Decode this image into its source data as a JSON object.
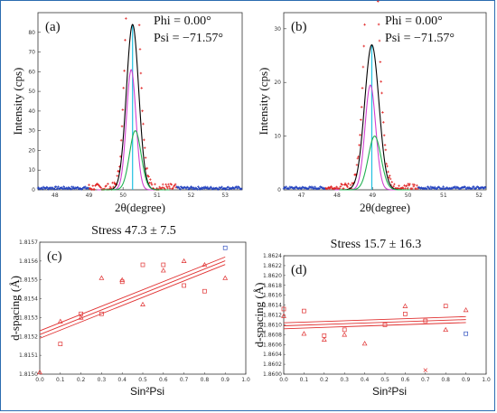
{
  "chart_data": [
    {
      "id": "a",
      "type": "line",
      "panel_label": "(a)",
      "xlabel": "2θ(degree)",
      "ylabel": "Intensity (cps)",
      "annotation_lines": [
        "Phi = 0.00°",
        "Psi = −71.57°"
      ],
      "xlim": [
        47.5,
        53.5
      ],
      "ylim": [
        0,
        90
      ],
      "xticks": [
        48,
        49,
        50,
        51,
        52,
        53
      ],
      "yticks": [
        0,
        10,
        20,
        30,
        40,
        50,
        60,
        70,
        80
      ],
      "peak_center": 50.28,
      "series": [
        {
          "type": "peak",
          "center": 50.28,
          "amplitude": 84,
          "width": 0.18,
          "color": "#000000"
        },
        {
          "type": "peak",
          "center": 50.24,
          "amplitude": 61,
          "width": 0.14,
          "color": "#d040d0"
        },
        {
          "type": "peak",
          "center": 50.36,
          "amplitude": 30,
          "width": 0.17,
          "color": "#20b050"
        }
      ],
      "colors": {
        "background": "#1f3fbf",
        "measured": "#e02020",
        "center_line": "#20c0e0"
      }
    },
    {
      "id": "b",
      "type": "line",
      "panel_label": "(b)",
      "xlabel": "2θ(degree)",
      "ylabel": "Intensity (cps)",
      "annotation_lines": [
        "Phi = 0.00°",
        "Psi = −71.57°"
      ],
      "xlim": [
        46.5,
        52.2
      ],
      "ylim": [
        0,
        33
      ],
      "xticks": [
        47,
        48,
        49,
        50,
        51,
        52
      ],
      "yticks": [
        0,
        10,
        20,
        30
      ],
      "peak_center": 48.98,
      "series": [
        {
          "type": "peak",
          "center": 48.98,
          "amplitude": 27,
          "width": 0.2,
          "color": "#000000"
        },
        {
          "type": "peak",
          "center": 48.94,
          "amplitude": 19.5,
          "width": 0.15,
          "color": "#d040d0"
        },
        {
          "type": "peak",
          "center": 49.06,
          "amplitude": 10,
          "width": 0.18,
          "color": "#20b050"
        }
      ],
      "colors": {
        "background": "#1f3fbf",
        "measured": "#e02020",
        "center_line": "#20c0e0"
      }
    },
    {
      "id": "c",
      "type": "scatter",
      "panel_label": "(c)",
      "stress_text": "Stress 47.3 ± 7.5",
      "xlabel": "Sin²Psi",
      "ylabel": "d-spacing (Å)",
      "xlim": [
        0,
        1
      ],
      "ylim": [
        1.815,
        1.8157
      ],
      "xticks": [
        "0.0",
        "0.1",
        "0.2",
        "0.3",
        "0.4",
        "0.5",
        "0.6",
        "0.7",
        "0.8",
        "0.9",
        "1.0"
      ],
      "yticks": [
        "1.8150",
        "1.8151",
        "1.8152",
        "1.8153",
        "1.8154",
        "1.8155",
        "1.8156",
        "1.8157"
      ],
      "fit": {
        "intercept": 1.81521,
        "slope": 0.000435,
        "band": 2e-05
      },
      "points": [
        {
          "x": 0.1,
          "y": 1.81528,
          "m": "tri"
        },
        {
          "x": 0.1,
          "y": 1.81516,
          "m": "sq"
        },
        {
          "x": 0.2,
          "y": 1.8153,
          "m": "tri"
        },
        {
          "x": 0.2,
          "y": 1.81532,
          "m": "sq"
        },
        {
          "x": 0.3,
          "y": 1.81551,
          "m": "tri"
        },
        {
          "x": 0.3,
          "y": 1.81532,
          "m": "sq"
        },
        {
          "x": 0.4,
          "y": 1.8155,
          "m": "tri"
        },
        {
          "x": 0.4,
          "y": 1.81549,
          "m": "sq"
        },
        {
          "x": 0.5,
          "y": 1.81537,
          "m": "tri"
        },
        {
          "x": 0.5,
          "y": 1.81558,
          "m": "sq"
        },
        {
          "x": 0.6,
          "y": 1.81555,
          "m": "tri"
        },
        {
          "x": 0.6,
          "y": 1.81558,
          "m": "sq"
        },
        {
          "x": 0.7,
          "y": 1.8156,
          "m": "tri"
        },
        {
          "x": 0.7,
          "y": 1.81547,
          "m": "sq"
        },
        {
          "x": 0.8,
          "y": 1.81558,
          "m": "tri"
        },
        {
          "x": 0.8,
          "y": 1.81544,
          "m": "sq"
        },
        {
          "x": 0.9,
          "y": 1.81551,
          "m": "tri"
        },
        {
          "x": 0.9,
          "y": 1.81567,
          "m": "sq-blue"
        },
        {
          "x": 0.0,
          "y": 1.81501,
          "m": "tri"
        }
      ],
      "colors": {
        "fit": "#e03030",
        "point": "#e03030",
        "point_alt": "#3050c0"
      }
    },
    {
      "id": "d",
      "type": "scatter",
      "panel_label": "(d)",
      "stress_text": "Stress 15.7 ± 16.3",
      "xlabel": "Sin²Psi",
      "ylabel": "d-spacing (Å)",
      "xlim": [
        0,
        1
      ],
      "ylim": [
        1.86,
        1.8624
      ],
      "xticks": [
        "0.0",
        "0.1",
        "0.2",
        "0.3",
        "0.4",
        "0.5",
        "0.6",
        "0.7",
        "0.8",
        "0.9",
        "1.0"
      ],
      "yticks": [
        "1.8600",
        "1.8602",
        "1.8604",
        "1.8606",
        "1.8608",
        "1.8610",
        "1.8612",
        "1.8614",
        "1.8616",
        "1.8618",
        "1.8620",
        "1.8622",
        "1.8624"
      ],
      "fit": {
        "intercept": 1.86098,
        "slope": 0.00014,
        "band": 6e-05
      },
      "points": [
        {
          "x": 0.0,
          "y": 1.86132,
          "m": "sq"
        },
        {
          "x": 0.0,
          "y": 1.86118,
          "m": "tri"
        },
        {
          "x": 0.1,
          "y": 1.86128,
          "m": "sq"
        },
        {
          "x": 0.1,
          "y": 1.86082,
          "m": "tri"
        },
        {
          "x": 0.2,
          "y": 1.86078,
          "m": "sq"
        },
        {
          "x": 0.2,
          "y": 1.8607,
          "m": "tri"
        },
        {
          "x": 0.3,
          "y": 1.8609,
          "m": "sq"
        },
        {
          "x": 0.3,
          "y": 1.8608,
          "m": "tri"
        },
        {
          "x": 0.4,
          "y": 1.86062,
          "m": "tri"
        },
        {
          "x": 0.5,
          "y": 1.861,
          "m": "sq"
        },
        {
          "x": 0.6,
          "y": 1.86138,
          "m": "tri"
        },
        {
          "x": 0.6,
          "y": 1.86122,
          "m": "sq"
        },
        {
          "x": 0.7,
          "y": 1.86108,
          "m": "sq"
        },
        {
          "x": 0.7,
          "y": 1.86008,
          "m": "x"
        },
        {
          "x": 0.8,
          "y": 1.86138,
          "m": "sq"
        },
        {
          "x": 0.8,
          "y": 1.8609,
          "m": "tri"
        },
        {
          "x": 0.9,
          "y": 1.8613,
          "m": "tri"
        },
        {
          "x": 0.9,
          "y": 1.86082,
          "m": "sq-blue"
        }
      ],
      "colors": {
        "fit": "#e03030",
        "point": "#e03030",
        "point_alt": "#3050c0"
      }
    }
  ]
}
